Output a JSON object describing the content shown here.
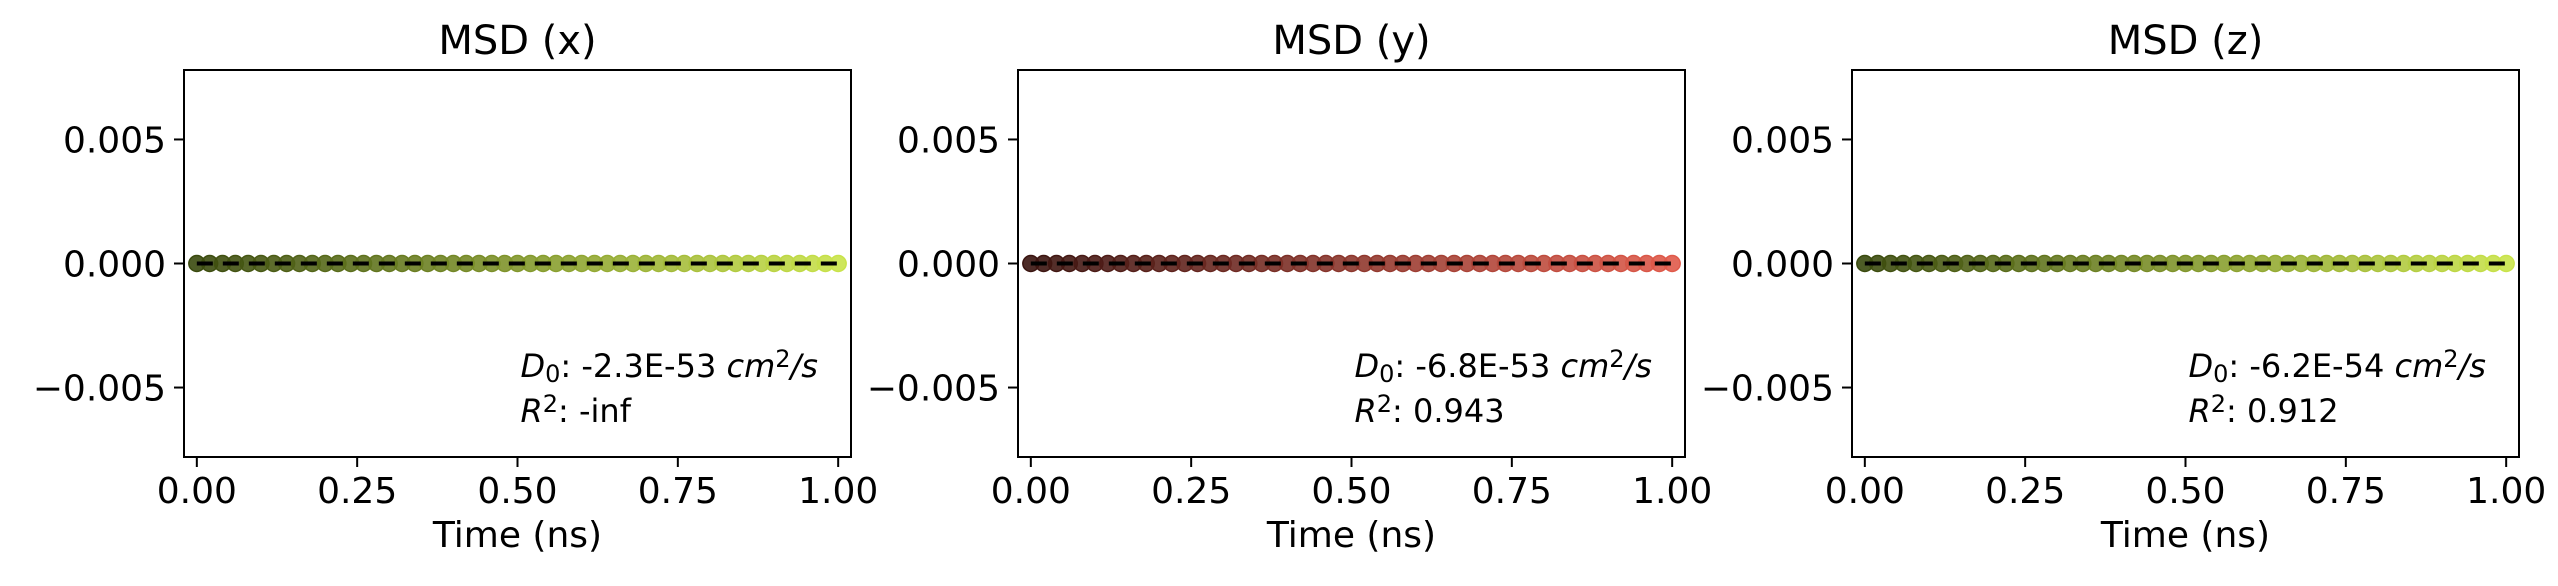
{
  "chart_data": [
    {
      "type": "line",
      "title": "MSD (x)",
      "xlabel": "Time (ns)",
      "ylabel": "",
      "xlim": [
        -0.02,
        1.02
      ],
      "ylim": [
        -0.0078,
        0.0078
      ],
      "xticks": [
        0.0,
        0.25,
        0.5,
        0.75,
        1.0
      ],
      "xtick_labels": [
        "0.00",
        "0.25",
        "0.50",
        "0.75",
        "1.00"
      ],
      "yticks": [
        0.005,
        0.0,
        -0.005
      ],
      "ytick_labels": [
        "0.005",
        "0.000",
        "−0.005"
      ],
      "grid": false,
      "colors": {
        "start": "#3a4a0e",
        "end": "#c9e34a"
      },
      "series": [
        {
          "style": "scatter",
          "x": [
            0.0,
            0.02,
            0.04,
            0.06,
            0.08,
            0.1,
            0.12,
            0.14,
            0.16,
            0.18,
            0.2,
            0.22,
            0.24,
            0.26,
            0.28,
            0.3,
            0.32,
            0.34,
            0.36,
            0.38,
            0.4,
            0.42,
            0.44,
            0.46,
            0.48,
            0.5,
            0.52,
            0.54,
            0.56,
            0.58,
            0.6,
            0.62,
            0.64,
            0.66,
            0.68,
            0.7,
            0.72,
            0.74,
            0.76,
            0.78,
            0.8,
            0.82,
            0.84,
            0.86,
            0.88,
            0.9,
            0.92,
            0.94,
            0.96,
            0.98,
            1.0
          ],
          "y_constant": 0.0
        },
        {
          "style": "fit-dashed",
          "x": [
            0.0,
            1.0
          ],
          "y": [
            0.0,
            0.0
          ],
          "color": "#000000"
        }
      ],
      "annotation": {
        "d0_label": "D",
        "d0_sub": "0",
        "d0_value": ": -2.3E-53 ",
        "d0_unit": "cm",
        "d0_unit_sup": "2",
        "d0_unit_tail": "/s",
        "r2_label": "R",
        "r2_sup": "2",
        "r2_value": ": -inf"
      }
    },
    {
      "type": "line",
      "title": "MSD (y)",
      "xlabel": "Time (ns)",
      "ylabel": "",
      "xlim": [
        -0.02,
        1.02
      ],
      "ylim": [
        -0.0078,
        0.0078
      ],
      "xticks": [
        0.0,
        0.25,
        0.5,
        0.75,
        1.0
      ],
      "xtick_labels": [
        "0.00",
        "0.25",
        "0.50",
        "0.75",
        "1.00"
      ],
      "yticks": [
        0.005,
        0.0,
        -0.005
      ],
      "ytick_labels": [
        "0.005",
        "0.000",
        "−0.005"
      ],
      "grid": false,
      "colors": {
        "start": "#3a1410",
        "end": "#e05a4a"
      },
      "series": [
        {
          "style": "scatter",
          "x": [
            0.0,
            0.02,
            0.04,
            0.06,
            0.08,
            0.1,
            0.12,
            0.14,
            0.16,
            0.18,
            0.2,
            0.22,
            0.24,
            0.26,
            0.28,
            0.3,
            0.32,
            0.34,
            0.36,
            0.38,
            0.4,
            0.42,
            0.44,
            0.46,
            0.48,
            0.5,
            0.52,
            0.54,
            0.56,
            0.58,
            0.6,
            0.62,
            0.64,
            0.66,
            0.68,
            0.7,
            0.72,
            0.74,
            0.76,
            0.78,
            0.8,
            0.82,
            0.84,
            0.86,
            0.88,
            0.9,
            0.92,
            0.94,
            0.96,
            0.98,
            1.0
          ],
          "y_constant": 0.0
        },
        {
          "style": "fit-dashed",
          "x": [
            0.0,
            1.0
          ],
          "y": [
            0.0,
            0.0
          ],
          "color": "#000000"
        }
      ],
      "annotation": {
        "d0_label": "D",
        "d0_sub": "0",
        "d0_value": ": -6.8E-53 ",
        "d0_unit": "cm",
        "d0_unit_sup": "2",
        "d0_unit_tail": "/s",
        "r2_label": "R",
        "r2_sup": "2",
        "r2_value": ": 0.943"
      }
    },
    {
      "type": "line",
      "title": "MSD (z)",
      "xlabel": "Time (ns)",
      "ylabel": "",
      "xlim": [
        -0.02,
        1.02
      ],
      "ylim": [
        -0.0078,
        0.0078
      ],
      "xticks": [
        0.0,
        0.25,
        0.5,
        0.75,
        1.0
      ],
      "xtick_labels": [
        "0.00",
        "0.25",
        "0.50",
        "0.75",
        "1.00"
      ],
      "yticks": [
        0.005,
        0.0,
        -0.005
      ],
      "ytick_labels": [
        "0.005",
        "0.000",
        "−0.005"
      ],
      "grid": false,
      "colors": {
        "start": "#3a4a0e",
        "end": "#c9e34a"
      },
      "series": [
        {
          "style": "scatter",
          "x": [
            0.0,
            0.02,
            0.04,
            0.06,
            0.08,
            0.1,
            0.12,
            0.14,
            0.16,
            0.18,
            0.2,
            0.22,
            0.24,
            0.26,
            0.28,
            0.3,
            0.32,
            0.34,
            0.36,
            0.38,
            0.4,
            0.42,
            0.44,
            0.46,
            0.48,
            0.5,
            0.52,
            0.54,
            0.56,
            0.58,
            0.6,
            0.62,
            0.64,
            0.66,
            0.68,
            0.7,
            0.72,
            0.74,
            0.76,
            0.78,
            0.8,
            0.82,
            0.84,
            0.86,
            0.88,
            0.9,
            0.92,
            0.94,
            0.96,
            0.98,
            1.0
          ],
          "y_constant": 0.0
        },
        {
          "style": "fit-dashed",
          "x": [
            0.0,
            1.0
          ],
          "y": [
            0.0,
            0.0
          ],
          "color": "#000000"
        }
      ],
      "annotation": {
        "d0_label": "D",
        "d0_sub": "0",
        "d0_value": ": -6.2E-54 ",
        "d0_unit": "cm",
        "d0_unit_sup": "2",
        "d0_unit_tail": "/s",
        "r2_label": "R",
        "r2_sup": "2",
        "r2_value": ": 0.912"
      }
    }
  ]
}
